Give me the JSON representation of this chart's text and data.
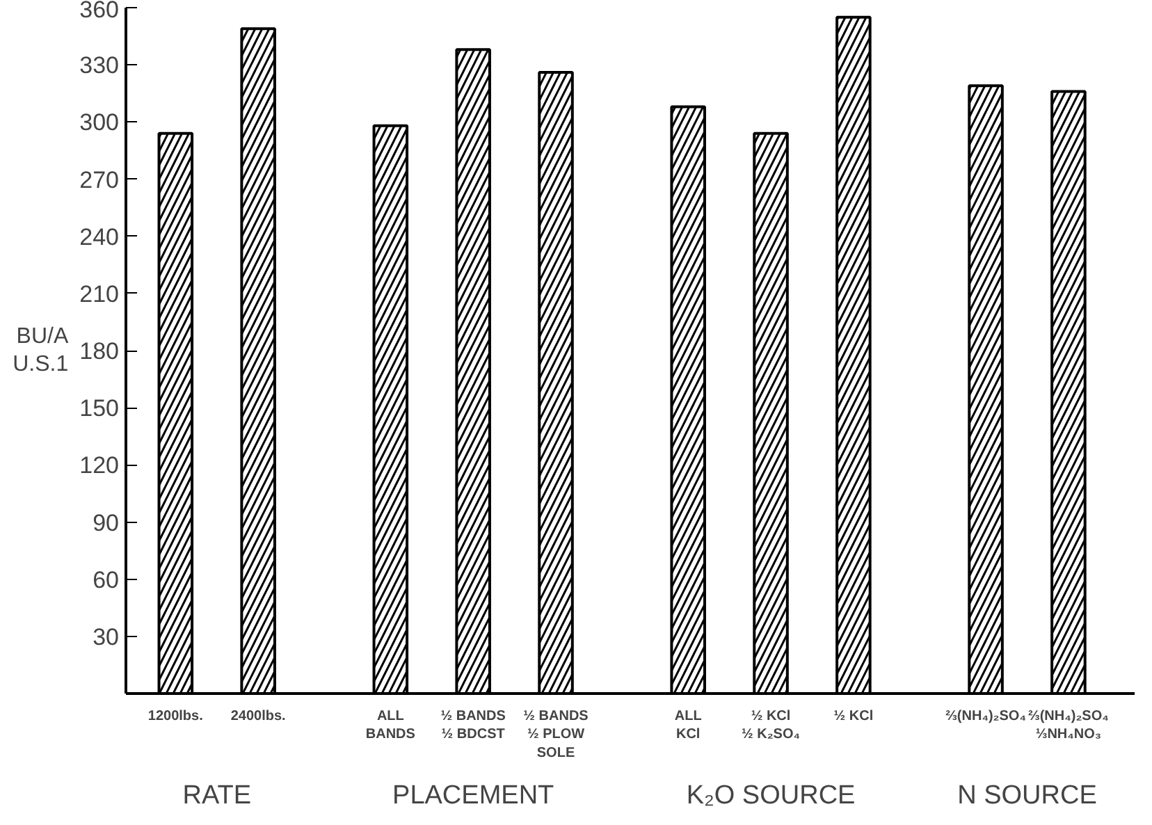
{
  "chart_data": {
    "type": "bar",
    "ylabel": "BU/A\nU.S.1",
    "categories": [
      "1200lbs.",
      "2400lbs.",
      "ALL\nBANDS",
      "½ BANDS\n½ BDCST",
      "½ BANDS\n½ PLOW\nSOLE",
      "ALL\nKCl",
      "½ KCl\n½ K₂SO₄",
      "½ KCl",
      "⅔(NH₄)₂SO₄",
      "⅔(NH₄)₂SO₄\n⅓NH₄NO₃"
    ],
    "values": [
      294,
      349,
      298,
      338,
      326,
      308,
      294,
      355,
      319,
      316
    ],
    "color": "#000000",
    "ylim": [
      0,
      360
    ],
    "yticks": [
      30,
      60,
      90,
      120,
      150,
      180,
      210,
      240,
      270,
      300,
      330,
      360
    ],
    "annotations": [
      "RATE",
      "PLACEMENT",
      "K₂O SOURCE",
      "N SOURCE"
    ],
    "grid": false
  }
}
